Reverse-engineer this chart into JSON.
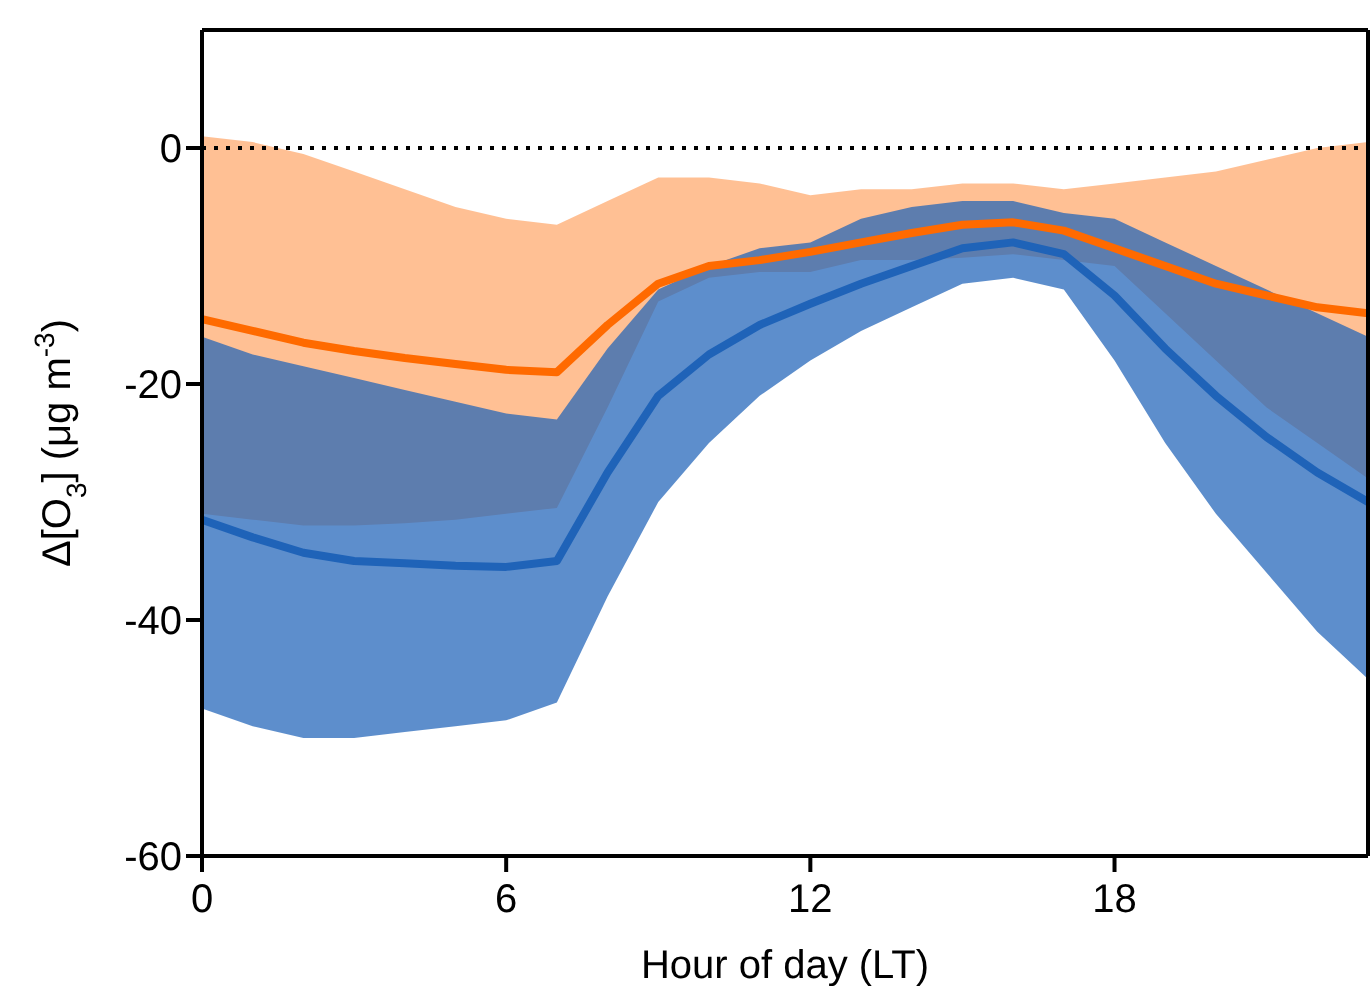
{
  "chart_data": {
    "type": "line",
    "xlabel": "Hour of day (LT)",
    "ylabel": "Δ[O$_{3}$] (μg m$^{-3}$)",
    "x": [
      0,
      1,
      2,
      3,
      4,
      5,
      6,
      7,
      8,
      9,
      10,
      11,
      12,
      13,
      14,
      15,
      16,
      17,
      18,
      19,
      20,
      21,
      22,
      23
    ],
    "series": [
      {
        "color": "#ff6a00",
        "values": [
          -14.5,
          -15.5,
          -16.5,
          -17.2,
          -17.8,
          -18.3,
          -18.8,
          -19,
          -15,
          -11.5,
          -10,
          -9.5,
          -8.8,
          -8,
          -7.2,
          -6.5,
          -6.3,
          -7,
          -8.5,
          -10,
          -11.5,
          -12.5,
          -13.5,
          -14
        ],
        "lower": [
          -31,
          -31.5,
          -32,
          -32,
          -31.8,
          -31.5,
          -31,
          -30.5,
          -22,
          -13,
          -11,
          -10.5,
          -10.5,
          -9.5,
          -9.5,
          -9.3,
          -9,
          -9.5,
          -10,
          -14,
          -18,
          -22,
          -25,
          -28
        ],
        "upper": [
          1,
          0.5,
          -0.5,
          -2,
          -3.5,
          -5,
          -6,
          -6.5,
          -4.5,
          -2.5,
          -2.5,
          -3,
          -4,
          -3.5,
          -3.5,
          -3,
          -3,
          -3.5,
          -3,
          -2.5,
          -2,
          -1,
          0,
          0.5
        ]
      },
      {
        "color": "#1f63b8",
        "values": [
          -31.5,
          -33,
          -34.3,
          -35,
          -35.2,
          -35.4,
          -35.5,
          -35,
          -27.5,
          -21,
          -17.5,
          -15,
          -13.2,
          -11.5,
          -10,
          -8.5,
          -8,
          -9,
          -12.5,
          -17,
          -21,
          -24.5,
          -27.5,
          -30
        ],
        "lower": [
          -47.5,
          -49,
          -50,
          -50,
          -49.5,
          -49,
          -48.5,
          -47,
          -38,
          -30,
          -25,
          -21,
          -18,
          -15.5,
          -13.5,
          -11.5,
          -11,
          -12,
          -18,
          -25,
          -31,
          -36,
          -41,
          -45
        ],
        "upper": [
          -16,
          -17.5,
          -18.5,
          -19.5,
          -20.5,
          -21.5,
          -22.5,
          -23,
          -17,
          -12,
          -10,
          -8.5,
          -8,
          -6,
          -5,
          -4.5,
          -4.5,
          -5.5,
          -6,
          -8,
          -10,
          -12,
          -14,
          -16
        ]
      }
    ],
    "xlim": [
      0,
      23
    ],
    "xticks": [
      0,
      6,
      12,
      18
    ],
    "ylim": [
      -60,
      10
    ],
    "yticks": [
      -60,
      -40,
      -20,
      0
    ],
    "ref_lines": [
      {
        "axis": "y",
        "value": 0,
        "color": "#000000",
        "line_style": "dotted"
      }
    ],
    "grid": false,
    "legend": false,
    "marker": "none",
    "line_style": "solid"
  }
}
